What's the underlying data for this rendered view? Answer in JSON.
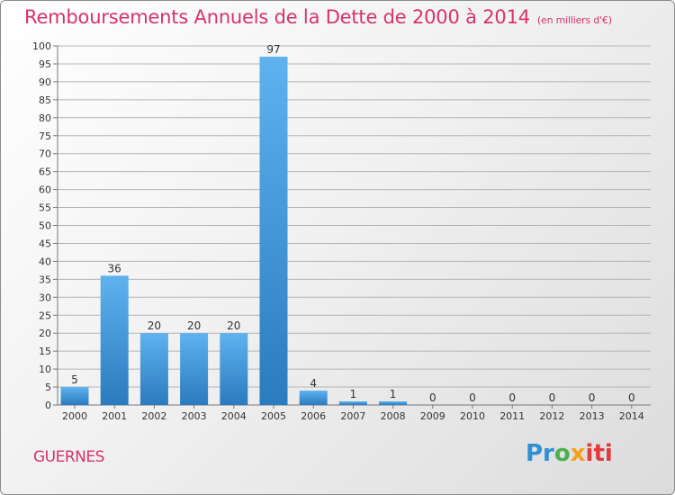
{
  "header": {
    "title": "Remboursements Annuels de la Dette de 2000 à 2014",
    "unit": "(en milliers d'€)"
  },
  "footer": {
    "town": "GUERNES",
    "logo": "Proxiti",
    "logo_letters": [
      "Pr",
      "o",
      "x",
      "iti"
    ]
  },
  "colors": {
    "title": "#d6336c",
    "bar_light": "#5aaeea",
    "bar_dark": "#2d7fc3",
    "grid": "#b0b0b0"
  },
  "chart_data": {
    "type": "bar",
    "categories": [
      "2000",
      "2001",
      "2002",
      "2003",
      "2004",
      "2005",
      "2006",
      "2007",
      "2008",
      "2009",
      "2010",
      "2011",
      "2012",
      "2013",
      "2014"
    ],
    "values": [
      5,
      36,
      20,
      20,
      20,
      97,
      4,
      1,
      1,
      0,
      0,
      0,
      0,
      0,
      0
    ],
    "data_labels": [
      "5",
      "36",
      "20",
      "20",
      "20",
      "97",
      "4",
      "1",
      "1",
      "0",
      "0",
      "0",
      "0",
      "0",
      "0"
    ],
    "yticks": [
      "0",
      "5",
      "10",
      "15",
      "20",
      "25",
      "30",
      "35",
      "40",
      "45",
      "50",
      "55",
      "60",
      "65",
      "70",
      "75",
      "80",
      "85",
      "90",
      "95",
      "100"
    ],
    "ylim": [
      0,
      100
    ],
    "title": "Remboursements Annuels de la Dette de 2000 à 2014",
    "xlabel": "",
    "ylabel": "",
    "grid": true
  }
}
